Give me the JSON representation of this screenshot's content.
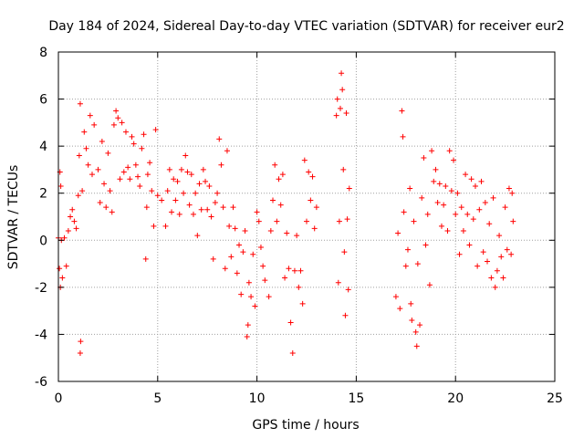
{
  "colors": {
    "series": "#ff0000",
    "grid": "#a0a0a0",
    "axis": "#000000",
    "background": "#ffffff"
  },
  "chart_data": {
    "type": "scatter",
    "title": "Day 184 of 2024, Sidereal Day-to-day VTEC variation (SDTVAR) for receiver eur2",
    "xlabel": "GPS time / hours",
    "ylabel": "SDTVAR / TECUs",
    "xlim": [
      0,
      25
    ],
    "ylim": [
      -6,
      8
    ],
    "xticks": [
      0,
      5,
      10,
      15,
      20,
      25
    ],
    "yticks": [
      -6,
      -4,
      -2,
      0,
      2,
      4,
      6,
      8
    ],
    "xtick_labels": [
      "0",
      "5",
      "10",
      "15",
      "20",
      "25"
    ],
    "ytick_labels": [
      "-6",
      "-4",
      "-2",
      "0",
      "2",
      "4",
      "6",
      "8"
    ],
    "grid": true,
    "marker": "+",
    "series": [
      {
        "name": "SDTVAR",
        "points": [
          [
            0.0,
            0.1
          ],
          [
            0.05,
            -1.2
          ],
          [
            0.08,
            2.9
          ],
          [
            0.1,
            -2.0
          ],
          [
            0.12,
            2.3
          ],
          [
            0.15,
            0.0
          ],
          [
            0.2,
            -1.6
          ],
          [
            0.3,
            0.1
          ],
          [
            0.4,
            -1.1
          ],
          [
            0.5,
            0.4
          ],
          [
            0.6,
            1.0
          ],
          [
            0.7,
            1.3
          ],
          [
            0.8,
            0.8
          ],
          [
            0.9,
            0.5
          ],
          [
            1.0,
            1.9
          ],
          [
            1.05,
            3.6
          ],
          [
            1.1,
            5.8
          ],
          [
            1.12,
            -4.3
          ],
          [
            1.1,
            -4.8
          ],
          [
            1.2,
            2.1
          ],
          [
            1.3,
            4.6
          ],
          [
            1.4,
            3.9
          ],
          [
            1.5,
            3.2
          ],
          [
            1.6,
            5.3
          ],
          [
            1.7,
            2.8
          ],
          [
            1.8,
            4.9
          ],
          [
            2.0,
            3.0
          ],
          [
            2.1,
            1.6
          ],
          [
            2.2,
            4.2
          ],
          [
            2.3,
            2.4
          ],
          [
            2.4,
            1.4
          ],
          [
            2.5,
            3.7
          ],
          [
            2.6,
            2.1
          ],
          [
            2.7,
            1.2
          ],
          [
            2.8,
            4.9
          ],
          [
            2.9,
            5.5
          ],
          [
            3.0,
            5.2
          ],
          [
            3.1,
            2.6
          ],
          [
            3.2,
            5.0
          ],
          [
            3.3,
            2.9
          ],
          [
            3.4,
            4.6
          ],
          [
            3.5,
            3.1
          ],
          [
            3.6,
            2.6
          ],
          [
            3.7,
            4.4
          ],
          [
            3.8,
            4.1
          ],
          [
            3.9,
            3.2
          ],
          [
            4.0,
            2.7
          ],
          [
            4.1,
            2.3
          ],
          [
            4.2,
            3.9
          ],
          [
            4.3,
            4.5
          ],
          [
            4.4,
            -0.8
          ],
          [
            4.45,
            1.4
          ],
          [
            4.5,
            2.8
          ],
          [
            4.6,
            3.3
          ],
          [
            4.7,
            2.1
          ],
          [
            4.8,
            0.6
          ],
          [
            4.9,
            4.7
          ],
          [
            5.0,
            1.9
          ],
          [
            5.2,
            1.7
          ],
          [
            5.4,
            0.6
          ],
          [
            5.5,
            2.1
          ],
          [
            5.6,
            3.0
          ],
          [
            5.7,
            1.2
          ],
          [
            5.8,
            2.6
          ],
          [
            5.9,
            1.7
          ],
          [
            6.0,
            2.5
          ],
          [
            6.1,
            1.1
          ],
          [
            6.2,
            3.0
          ],
          [
            6.3,
            2.0
          ],
          [
            6.4,
            3.6
          ],
          [
            6.5,
            2.9
          ],
          [
            6.6,
            1.5
          ],
          [
            6.7,
            2.8
          ],
          [
            6.8,
            1.1
          ],
          [
            6.9,
            2.0
          ],
          [
            7.0,
            0.2
          ],
          [
            7.1,
            2.4
          ],
          [
            7.2,
            1.3
          ],
          [
            7.3,
            3.0
          ],
          [
            7.4,
            2.5
          ],
          [
            7.5,
            1.3
          ],
          [
            7.6,
            2.3
          ],
          [
            7.7,
            1.0
          ],
          [
            7.8,
            -0.8
          ],
          [
            7.9,
            1.6
          ],
          [
            8.0,
            2.0
          ],
          [
            8.1,
            4.3
          ],
          [
            8.2,
            3.2
          ],
          [
            8.3,
            1.4
          ],
          [
            8.4,
            -1.2
          ],
          [
            8.5,
            3.8
          ],
          [
            8.6,
            0.6
          ],
          [
            8.7,
            -0.7
          ],
          [
            8.8,
            1.4
          ],
          [
            8.9,
            0.5
          ],
          [
            9.0,
            -1.4
          ],
          [
            9.1,
            -0.2
          ],
          [
            9.2,
            -2.3
          ],
          [
            9.3,
            -0.5
          ],
          [
            9.4,
            0.4
          ],
          [
            9.5,
            -4.1
          ],
          [
            9.55,
            -3.6
          ],
          [
            9.6,
            -1.8
          ],
          [
            9.7,
            -2.4
          ],
          [
            9.8,
            -0.6
          ],
          [
            9.9,
            -2.8
          ],
          [
            10.0,
            1.2
          ],
          [
            10.1,
            0.8
          ],
          [
            10.2,
            -0.3
          ],
          [
            10.3,
            -1.1
          ],
          [
            10.4,
            -1.7
          ],
          [
            10.6,
            -2.4
          ],
          [
            10.7,
            0.4
          ],
          [
            10.8,
            1.7
          ],
          [
            10.9,
            3.2
          ],
          [
            11.0,
            0.8
          ],
          [
            11.1,
            2.6
          ],
          [
            11.2,
            1.5
          ],
          [
            11.3,
            2.8
          ],
          [
            11.4,
            -1.6
          ],
          [
            11.5,
            0.3
          ],
          [
            11.6,
            -1.2
          ],
          [
            11.7,
            -3.5
          ],
          [
            11.8,
            -4.8
          ],
          [
            11.9,
            -1.3
          ],
          [
            12.0,
            0.2
          ],
          [
            12.1,
            -2.0
          ],
          [
            12.2,
            -1.3
          ],
          [
            12.3,
            -2.7
          ],
          [
            12.4,
            3.4
          ],
          [
            12.5,
            0.8
          ],
          [
            12.6,
            2.9
          ],
          [
            12.7,
            1.7
          ],
          [
            12.8,
            2.7
          ],
          [
            12.9,
            0.5
          ],
          [
            13.0,
            1.4
          ],
          [
            14.0,
            5.3
          ],
          [
            14.05,
            6.0
          ],
          [
            14.1,
            -1.8
          ],
          [
            14.15,
            0.8
          ],
          [
            14.2,
            5.6
          ],
          [
            14.25,
            7.1
          ],
          [
            14.3,
            6.4
          ],
          [
            14.35,
            3.0
          ],
          [
            14.4,
            -0.5
          ],
          [
            14.45,
            -3.2
          ],
          [
            14.5,
            5.4
          ],
          [
            14.55,
            0.9
          ],
          [
            14.6,
            -2.1
          ],
          [
            14.65,
            2.2
          ],
          [
            17.0,
            -2.4
          ],
          [
            17.1,
            0.3
          ],
          [
            17.2,
            -2.9
          ],
          [
            17.3,
            5.5
          ],
          [
            17.35,
            4.4
          ],
          [
            17.4,
            1.2
          ],
          [
            17.5,
            -1.1
          ],
          [
            17.6,
            -0.4
          ],
          [
            17.7,
            2.2
          ],
          [
            17.75,
            -2.7
          ],
          [
            17.8,
            -3.4
          ],
          [
            17.9,
            0.8
          ],
          [
            18.0,
            -3.9
          ],
          [
            18.05,
            -4.5
          ],
          [
            18.1,
            -1.0
          ],
          [
            18.2,
            -3.6
          ],
          [
            18.3,
            1.8
          ],
          [
            18.4,
            3.5
          ],
          [
            18.5,
            -0.2
          ],
          [
            18.6,
            1.1
          ],
          [
            18.7,
            -1.9
          ],
          [
            18.8,
            3.8
          ],
          [
            18.9,
            2.5
          ],
          [
            19.0,
            3.0
          ],
          [
            19.1,
            1.6
          ],
          [
            19.2,
            2.4
          ],
          [
            19.3,
            0.6
          ],
          [
            19.4,
            1.5
          ],
          [
            19.5,
            2.3
          ],
          [
            19.6,
            0.4
          ],
          [
            19.7,
            3.8
          ],
          [
            19.8,
            2.1
          ],
          [
            19.9,
            3.4
          ],
          [
            20.0,
            1.1
          ],
          [
            20.1,
            2.0
          ],
          [
            20.2,
            -0.6
          ],
          [
            20.3,
            1.4
          ],
          [
            20.4,
            0.4
          ],
          [
            20.5,
            2.8
          ],
          [
            20.6,
            1.1
          ],
          [
            20.7,
            -0.2
          ],
          [
            20.8,
            2.6
          ],
          [
            20.9,
            0.9
          ],
          [
            21.0,
            2.3
          ],
          [
            21.1,
            -1.1
          ],
          [
            21.2,
            1.3
          ],
          [
            21.3,
            2.5
          ],
          [
            21.4,
            -0.5
          ],
          [
            21.5,
            1.6
          ],
          [
            21.6,
            -0.9
          ],
          [
            21.7,
            0.7
          ],
          [
            21.8,
            -1.6
          ],
          [
            21.9,
            1.8
          ],
          [
            22.0,
            -2.0
          ],
          [
            22.1,
            -1.3
          ],
          [
            22.2,
            0.2
          ],
          [
            22.3,
            -0.7
          ],
          [
            22.4,
            -1.6
          ],
          [
            22.5,
            1.4
          ],
          [
            22.6,
            -0.4
          ],
          [
            22.7,
            2.2
          ],
          [
            22.8,
            -0.6
          ],
          [
            22.85,
            2.0
          ],
          [
            22.9,
            0.8
          ]
        ]
      }
    ]
  }
}
